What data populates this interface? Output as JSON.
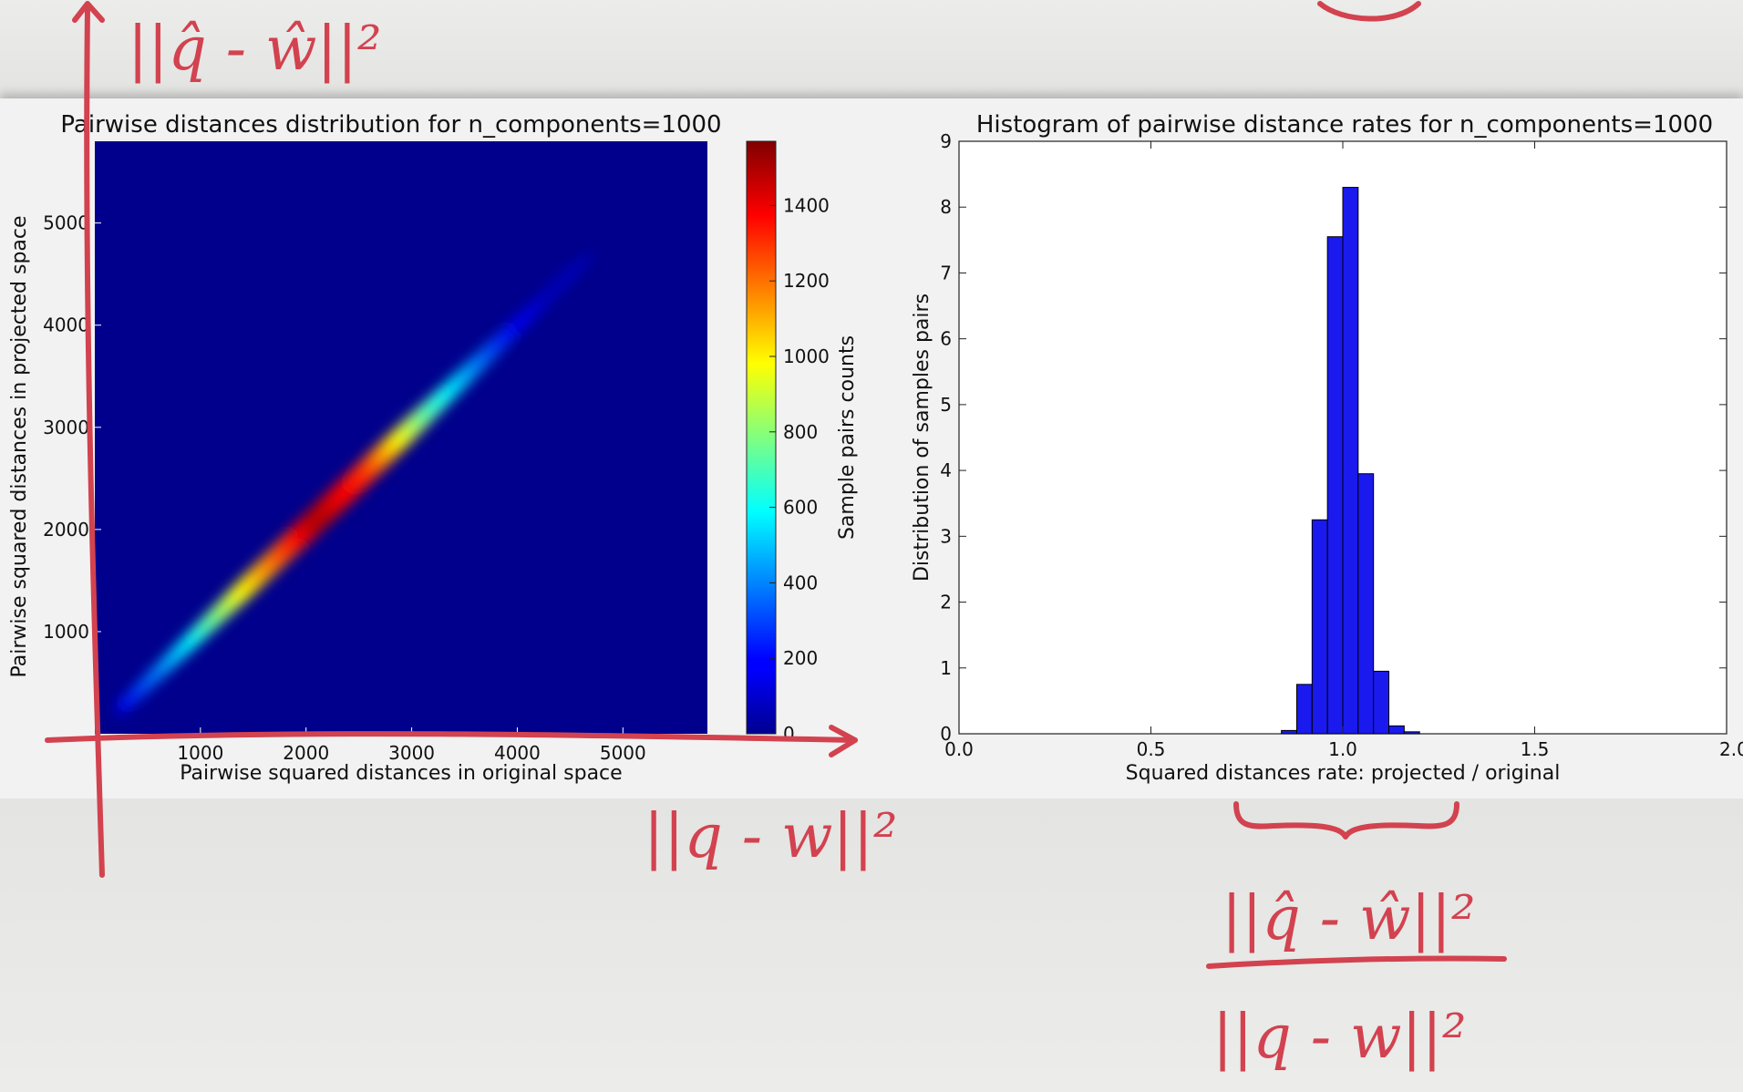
{
  "chart_data": [
    {
      "type": "heatmap",
      "title": "Pairwise distances distribution for n_components=1000",
      "xlabel": "Pairwise squared distances in original space",
      "ylabel": "Pairwise squared distances in projected space",
      "xlim": [
        0,
        5800
      ],
      "ylim": [
        0,
        5800
      ],
      "x_ticks": [
        1000,
        2000,
        3000,
        4000,
        5000
      ],
      "y_ticks": [
        1000,
        2000,
        3000,
        4000,
        5000
      ],
      "colormap": "jet",
      "colorbar": {
        "label": "Sample pairs counts",
        "range": [
          0,
          1570
        ],
        "ticks": [
          0,
          200,
          400,
          600,
          800,
          1000,
          1200,
          1400
        ]
      },
      "density_ridge": {
        "description_points": [
          {
            "x": 300,
            "y": 300,
            "count": 200
          },
          {
            "x": 1000,
            "y": 1000,
            "count": 600
          },
          {
            "x": 1500,
            "y": 1500,
            "count": 1000
          },
          {
            "x": 2200,
            "y": 2200,
            "count": 1500
          },
          {
            "x": 2700,
            "y": 2700,
            "count": 1300
          },
          {
            "x": 3300,
            "y": 3300,
            "count": 700
          },
          {
            "x": 4000,
            "y": 4000,
            "count": 250
          },
          {
            "x": 4500,
            "y": 4500,
            "count": 80
          }
        ]
      }
    },
    {
      "type": "bar",
      "title": "Histogram of pairwise distance rates for n_components=1000",
      "xlabel": "Squared distances rate: projected / original",
      "ylabel": "Distribution of samples pairs",
      "xlim": [
        0.0,
        2.0
      ],
      "ylim": [
        0,
        9
      ],
      "x_ticks": [
        "0.0",
        "0.5",
        "1.0",
        "1.5",
        "2.0"
      ],
      "y_ticks": [
        "0",
        "1",
        "2",
        "3",
        "4",
        "5",
        "6",
        "7",
        "8",
        "9"
      ],
      "bin_edges": [
        0.84,
        0.88,
        0.92,
        0.96,
        1.0,
        1.04,
        1.08,
        1.12,
        1.16,
        1.2
      ],
      "values": [
        0.05,
        0.75,
        3.25,
        7.55,
        8.3,
        3.95,
        0.95,
        0.12,
        0.03
      ],
      "bar_color": "#1a1aee"
    }
  ],
  "annotations": {
    "top_left": "||q̂ - ŵ||²",
    "bottom_middle": "||q - w||²",
    "fraction_numerator": "||q̂ - ŵ||²",
    "fraction_denominator": "||q - w||²"
  },
  "colors": {
    "ink": "#d2424f",
    "bar": "#1a1aee",
    "heatmap_background": "#00008c"
  }
}
